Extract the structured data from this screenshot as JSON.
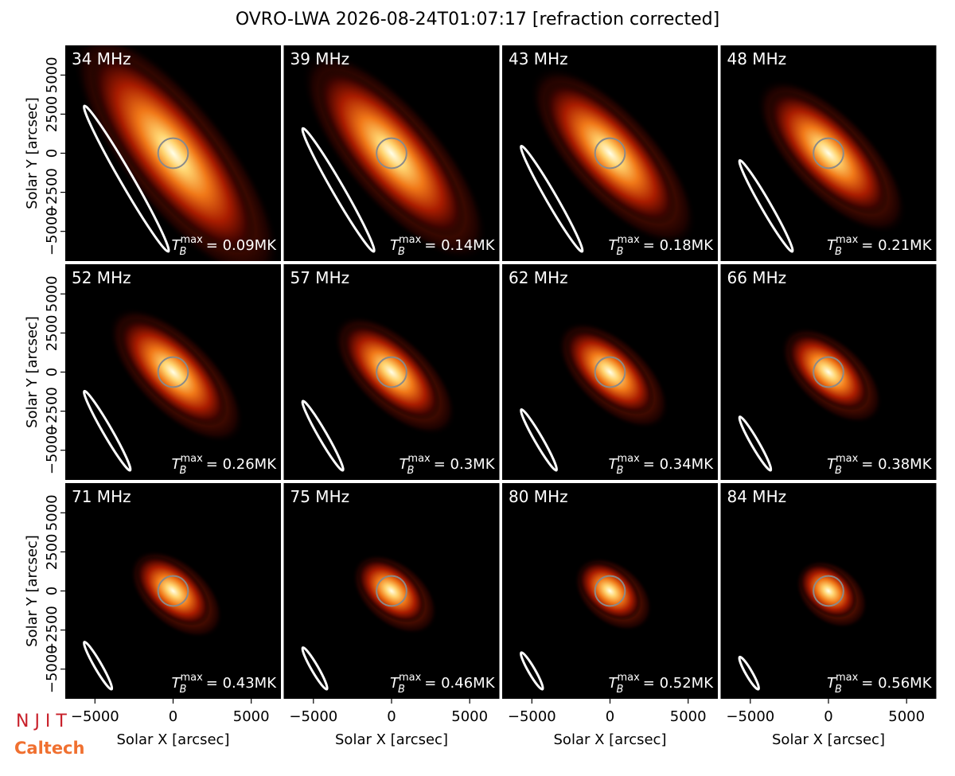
{
  "figure": {
    "title": "OVRO-LWA 2026-08-24T01:07:17 [refraction corrected]",
    "xlabel": "Solar X [arcsec]",
    "ylabel": "Solar Y [arcsec]",
    "xlim": [
      -6900,
      6900
    ],
    "ylim": [
      -6900,
      6900
    ],
    "xticks": [
      {
        "value": -5000,
        "label": "−5000"
      },
      0,
      5000
    ],
    "yticks": [
      {
        "value": -5000,
        "label": "−5000"
      },
      {
        "value": -2500,
        "label": "−2500"
      },
      0,
      2500,
      5000
    ],
    "logos": [
      "N J I T",
      "Caltech"
    ]
  },
  "chart_data": [
    {
      "type": "image",
      "title": "34 MHz",
      "annotation": {
        "symbol": "T",
        "subscript": "B",
        "superscript": "max",
        "text": "= 0.09MK",
        "value": 0.09
      }
    },
    {
      "type": "image",
      "title": "39 MHz",
      "annotation": {
        "symbol": "T",
        "subscript": "B",
        "superscript": "max",
        "text": "= 0.14MK",
        "value": 0.14
      }
    },
    {
      "type": "image",
      "title": "43 MHz",
      "annotation": {
        "symbol": "T",
        "subscript": "B",
        "superscript": "max",
        "text": "= 0.18MK",
        "value": 0.18
      }
    },
    {
      "type": "image",
      "title": "48 MHz",
      "annotation": {
        "symbol": "T",
        "subscript": "B",
        "superscript": "max",
        "text": "= 0.21MK",
        "value": 0.21
      }
    },
    {
      "type": "image",
      "title": "52 MHz",
      "annotation": {
        "symbol": "T",
        "subscript": "B",
        "superscript": "max",
        "text": "= 0.26MK",
        "value": 0.26
      }
    },
    {
      "type": "image",
      "title": "57 MHz",
      "annotation": {
        "symbol": "T",
        "subscript": "B",
        "superscript": "max",
        "text": "= 0.3MK",
        "value": 0.3
      }
    },
    {
      "type": "image",
      "title": "62 MHz",
      "annotation": {
        "symbol": "T",
        "subscript": "B",
        "superscript": "max",
        "text": "= 0.34MK",
        "value": 0.34
      }
    },
    {
      "type": "image",
      "title": "66 MHz",
      "annotation": {
        "symbol": "T",
        "subscript": "B",
        "superscript": "max",
        "text": "= 0.38MK",
        "value": 0.38
      }
    },
    {
      "type": "image",
      "title": "71 MHz",
      "annotation": {
        "symbol": "T",
        "subscript": "B",
        "superscript": "max",
        "text": "= 0.43MK",
        "value": 0.43
      }
    },
    {
      "type": "image",
      "title": "75 MHz",
      "annotation": {
        "symbol": "T",
        "subscript": "B",
        "superscript": "max",
        "text": "= 0.46MK",
        "value": 0.46
      }
    },
    {
      "type": "image",
      "title": "80 MHz",
      "annotation": {
        "symbol": "T",
        "subscript": "B",
        "superscript": "max",
        "text": "= 0.52MK",
        "value": 0.52
      }
    },
    {
      "type": "image",
      "title": "84 MHz",
      "annotation": {
        "symbol": "T",
        "subscript": "B",
        "superscript": "max",
        "text": "= 0.56MK",
        "value": 0.56
      }
    }
  ]
}
